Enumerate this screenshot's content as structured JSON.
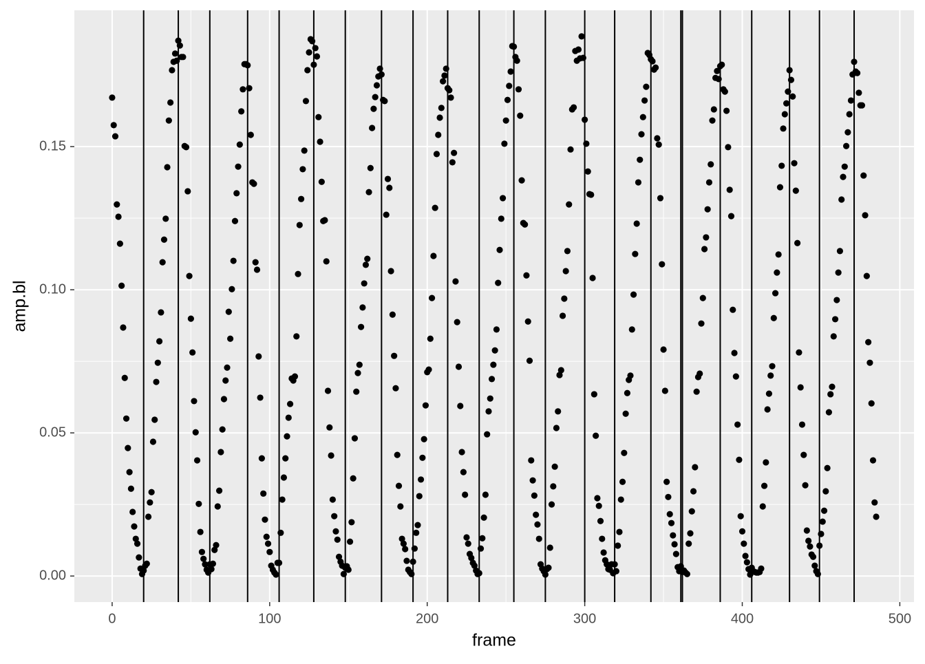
{
  "chart_data": {
    "type": "scatter",
    "x_label": "frame",
    "y_label": "amp.bl",
    "xlim": [
      -24,
      509
    ],
    "ylim": [
      -0.0091,
      0.1976
    ],
    "xticks": [
      0,
      100,
      200,
      300,
      400,
      500
    ],
    "yticks": [
      {
        "value": 0,
        "label": "0.00"
      },
      {
        "value": 0.05,
        "label": "0.05"
      },
      {
        "value": 0.1,
        "label": "0.10"
      },
      {
        "value": 0.15,
        "label": "0.15"
      }
    ],
    "grid": true,
    "color": "#000000",
    "vline_color": "#000000",
    "vlines": [
      20,
      42,
      62,
      86,
      106,
      128,
      148,
      171,
      191,
      213,
      233,
      255,
      275,
      300,
      319,
      342,
      361,
      362,
      386,
      406,
      430,
      449,
      471
    ],
    "x": [
      0,
      1,
      2,
      3,
      4,
      5,
      6,
      7,
      8,
      9,
      10,
      11,
      12,
      13,
      14,
      15,
      16,
      17,
      18,
      19,
      20,
      21,
      22,
      23,
      24,
      25,
      26,
      27,
      28,
      29,
      30,
      31,
      32,
      33,
      34,
      35,
      36,
      37,
      38,
      39,
      40,
      41,
      42,
      43,
      44,
      45,
      46,
      47,
      48,
      49,
      50,
      51,
      52,
      53,
      54,
      55,
      56,
      57,
      58,
      59,
      60,
      61,
      62,
      63,
      64,
      65,
      66,
      67,
      68,
      69,
      70,
      71,
      72,
      73,
      74,
      75,
      76,
      77,
      78,
      79,
      80,
      81,
      82,
      83,
      84,
      85,
      86,
      87,
      88,
      89,
      90,
      91,
      92,
      93,
      94,
      95,
      96,
      97,
      98,
      99,
      100,
      101,
      102,
      103,
      104,
      105,
      106,
      107,
      108,
      109,
      110,
      111,
      112,
      113,
      114,
      115,
      116,
      117,
      118,
      119,
      120,
      121,
      122,
      123,
      124,
      125,
      126,
      127,
      128,
      129,
      130,
      131,
      132,
      133,
      134,
      135,
      136,
      137,
      138,
      139,
      140,
      141,
      142,
      143,
      144,
      145,
      146,
      147,
      148,
      149,
      150,
      151,
      152,
      153,
      154,
      155,
      156,
      157,
      158,
      159,
      160,
      161,
      162,
      163,
      164,
      165,
      166,
      167,
      168,
      169,
      170,
      171,
      172,
      173,
      174,
      175,
      176,
      177,
      178,
      179,
      180,
      181,
      182,
      183,
      184,
      185,
      186,
      187,
      188,
      189,
      190,
      191,
      192,
      193,
      194,
      195,
      196,
      197,
      198,
      199,
      200,
      201,
      202,
      203,
      204,
      205,
      206,
      207,
      208,
      209,
      210,
      211,
      212,
      213,
      214,
      215,
      216,
      217,
      218,
      219,
      220,
      221,
      222,
      223,
      224,
      225,
      226,
      227,
      228,
      229,
      230,
      231,
      232,
      233,
      234,
      235,
      236,
      237,
      238,
      239,
      240,
      241,
      242,
      243,
      244,
      245,
      246,
      247,
      248,
      249,
      250,
      251,
      252,
      253,
      254,
      255,
      256,
      257,
      258,
      259,
      260,
      261,
      262,
      263,
      264,
      265,
      266,
      267,
      268,
      269,
      270,
      271,
      272,
      273,
      274,
      275,
      276,
      277,
      278,
      279,
      280,
      281,
      282,
      283,
      284,
      285,
      286,
      287,
      288,
      289,
      290,
      291,
      292,
      293,
      294,
      295,
      296,
      297,
      298,
      299,
      300,
      301,
      302,
      303,
      304,
      305,
      306,
      307,
      308,
      309,
      310,
      311,
      312,
      313,
      314,
      315,
      316,
      317,
      318,
      319,
      320,
      321,
      322,
      323,
      324,
      325,
      326,
      327,
      328,
      329,
      330,
      331,
      332,
      333,
      334,
      335,
      336,
      337,
      338,
      339,
      340,
      341,
      342,
      343,
      344,
      345,
      346,
      347,
      348,
      349,
      350,
      351,
      352,
      353,
      354,
      355,
      356,
      357,
      358,
      359,
      360,
      361,
      362,
      363,
      364,
      365,
      366,
      367,
      368,
      369,
      370,
      371,
      372,
      373,
      374,
      375,
      376,
      377,
      378,
      379,
      380,
      381,
      382,
      383,
      384,
      385,
      386,
      387,
      388,
      389,
      390,
      391,
      392,
      393,
      394,
      395,
      396,
      397,
      398,
      399,
      400,
      401,
      402,
      403,
      404,
      405,
      406,
      407,
      408,
      409,
      410,
      411,
      412,
      413,
      414,
      415,
      416,
      417,
      418,
      419,
      420,
      421,
      422,
      423,
      424,
      425,
      426,
      427,
      428,
      429,
      430,
      431,
      432,
      433,
      434,
      435,
      436,
      437,
      438,
      439,
      440,
      441,
      442,
      443,
      444,
      445,
      446,
      447,
      448,
      449,
      450,
      451,
      452,
      453,
      454,
      455,
      456,
      457,
      458,
      459,
      460,
      461,
      462,
      463,
      464,
      465,
      466,
      467,
      468,
      469,
      470,
      471,
      472,
      473,
      474,
      475,
      476,
      477,
      478,
      479,
      480,
      481,
      482,
      483,
      484,
      485
    ],
    "values": [
      0.1671,
      0.1575,
      0.1536,
      0.1298,
      0.1255,
      0.1161,
      0.1014,
      0.0868,
      0.0692,
      0.055,
      0.0447,
      0.0363,
      0.0305,
      0.0224,
      0.0173,
      0.013,
      0.0113,
      0.0065,
      0.0026,
      0.0007,
      0.0019,
      0.0036,
      0.0043,
      0.0207,
      0.0257,
      0.0293,
      0.0469,
      0.0546,
      0.0678,
      0.0745,
      0.082,
      0.0921,
      0.1096,
      0.1175,
      0.1248,
      0.1428,
      0.1591,
      0.1654,
      0.1767,
      0.1796,
      0.1825,
      0.18,
      0.187,
      0.1853,
      0.1813,
      0.1813,
      0.1502,
      0.1498,
      0.1344,
      0.1048,
      0.0899,
      0.0781,
      0.0611,
      0.0502,
      0.0404,
      0.0252,
      0.0154,
      0.0084,
      0.006,
      0.0041,
      0.0022,
      0.0012,
      0.0041,
      0.0024,
      0.0043,
      0.0091,
      0.0108,
      0.0243,
      0.0298,
      0.0433,
      0.0512,
      0.0618,
      0.0683,
      0.0728,
      0.0923,
      0.0829,
      0.1002,
      0.1101,
      0.124,
      0.1337,
      0.143,
      0.1507,
      0.1623,
      0.17,
      0.1788,
      0.1788,
      0.1784,
      0.1704,
      0.1541,
      0.1375,
      0.137,
      0.1096,
      0.107,
      0.0767,
      0.0623,
      0.0411,
      0.0288,
      0.0197,
      0.0137,
      0.0113,
      0.0084,
      0.0036,
      0.0022,
      0.0012,
      0.0005,
      0.0046,
      0.0046,
      0.0151,
      0.0267,
      0.0344,
      0.0411,
      0.0488,
      0.0553,
      0.0601,
      0.069,
      0.0683,
      0.0697,
      0.0837,
      0.1055,
      0.1226,
      0.1317,
      0.1421,
      0.1486,
      0.1659,
      0.1767,
      0.1829,
      0.1875,
      0.1868,
      0.1786,
      0.1844,
      0.1815,
      0.1603,
      0.1517,
      0.1377,
      0.124,
      0.1243,
      0.1099,
      0.0647,
      0.0519,
      0.0421,
      0.0267,
      0.0209,
      0.0156,
      0.0127,
      0.0067,
      0.005,
      0.0036,
      0.0007,
      0.0029,
      0.0034,
      0.0022,
      0.012,
      0.0188,
      0.0341,
      0.0481,
      0.0644,
      0.0709,
      0.0738,
      0.087,
      0.0938,
      0.1022,
      0.1087,
      0.1108,
      0.1341,
      0.1425,
      0.1565,
      0.1632,
      0.1673,
      0.1714,
      0.1745,
      0.1772,
      0.1752,
      0.1663,
      0.1659,
      0.1262,
      0.1387,
      0.1356,
      0.1065,
      0.0913,
      0.0769,
      0.0656,
      0.0423,
      0.0315,
      0.0243,
      0.013,
      0.0113,
      0.0094,
      0.0053,
      0.0022,
      0.0014,
      0.0007,
      0.005,
      0.0096,
      0.0151,
      0.0178,
      0.0279,
      0.0337,
      0.0413,
      0.0478,
      0.0596,
      0.0712,
      0.0721,
      0.0829,
      0.0971,
      0.1118,
      0.1286,
      0.1474,
      0.1541,
      0.1601,
      0.1635,
      0.1728,
      0.1748,
      0.1772,
      0.1704,
      0.1697,
      0.1671,
      0.1445,
      0.1478,
      0.1029,
      0.0887,
      0.0731,
      0.0594,
      0.0433,
      0.0363,
      0.0284,
      0.0135,
      0.0113,
      0.0077,
      0.0063,
      0.0046,
      0.0036,
      0.0019,
      0.0007,
      0.001,
      0.0096,
      0.0132,
      0.0204,
      0.0284,
      0.0495,
      0.0575,
      0.062,
      0.0688,
      0.0738,
      0.0788,
      0.0861,
      0.1024,
      0.1139,
      0.1248,
      0.132,
      0.151,
      0.1591,
      0.1663,
      0.1712,
      0.1762,
      0.1851,
      0.1849,
      0.1813,
      0.18,
      0.17,
      0.1608,
      0.1382,
      0.1233,
      0.1228,
      0.105,
      0.0889,
      0.0752,
      0.0404,
      0.0334,
      0.0281,
      0.0214,
      0.018,
      0.013,
      0.0041,
      0.0026,
      0.0017,
      0.0005,
      0.0024,
      0.0029,
      0.0099,
      0.025,
      0.0313,
      0.0382,
      0.0517,
      0.0575,
      0.0702,
      0.0719,
      0.0909,
      0.0969,
      0.1065,
      0.1135,
      0.1298,
      0.149,
      0.163,
      0.1637,
      0.1834,
      0.18,
      0.1839,
      0.1808,
      0.1885,
      0.181,
      0.1594,
      0.151,
      0.1413,
      0.1334,
      0.1332,
      0.1041,
      0.0635,
      0.049,
      0.0272,
      0.0245,
      0.0192,
      0.013,
      0.0082,
      0.0055,
      0.0041,
      0.0024,
      0.0022,
      0.0041,
      0.001,
      0.0041,
      0.0017,
      0.0106,
      0.0154,
      0.0267,
      0.0329,
      0.043,
      0.0567,
      0.0639,
      0.0685,
      0.07,
      0.0861,
      0.0983,
      0.1125,
      0.1231,
      0.1375,
      0.1454,
      0.1543,
      0.1603,
      0.1661,
      0.1709,
      0.1827,
      0.182,
      0.1805,
      0.1798,
      0.1769,
      0.1776,
      0.1529,
      0.1507,
      0.132,
      0.1089,
      0.0791,
      0.0647,
      0.0329,
      0.0276,
      0.0216,
      0.0185,
      0.0142,
      0.0111,
      0.0077,
      0.0031,
      0.0017,
      0.0034,
      0.0014,
      0.0019,
      0.0012,
      0.0007,
      0.0113,
      0.0149,
      0.0226,
      0.0296,
      0.038,
      0.0644,
      0.0695,
      0.0707,
      0.0882,
      0.0971,
      0.1142,
      0.1183,
      0.1281,
      0.1375,
      0.1438,
      0.1591,
      0.163,
      0.174,
      0.1764,
      0.1736,
      0.1781,
      0.1786,
      0.17,
      0.1692,
      0.1625,
      0.1498,
      0.1349,
      0.1257,
      0.093,
      0.0779,
      0.0697,
      0.0529,
      0.0406,
      0.0209,
      0.0156,
      0.0113,
      0.007,
      0.0048,
      0.0024,
      0.0005,
      0.0029,
      0.0017,
      0.0014,
      0.0012,
      0.0012,
      0.0014,
      0.0026,
      0.0243,
      0.0315,
      0.0397,
      0.0582,
      0.0637,
      0.07,
      0.0733,
      0.0901,
      0.0988,
      0.106,
      0.1123,
      0.1358,
      0.1433,
      0.1563,
      0.1613,
      0.1651,
      0.1692,
      0.1767,
      0.1733,
      0.1675,
      0.1442,
      0.1346,
      0.1163,
      0.0781,
      0.0659,
      0.0529,
      0.0423,
      0.0317,
      0.0159,
      0.0123,
      0.0103,
      0.0075,
      0.0067,
      0.0036,
      0.0017,
      0.0007,
      0.0106,
      0.0147,
      0.019,
      0.0228,
      0.0296,
      0.0377,
      0.0572,
      0.0635,
      0.0661,
      0.0837,
      0.0897,
      0.0964,
      0.106,
      0.1135,
      0.1315,
      0.1394,
      0.143,
      0.1502,
      0.155,
      0.1613,
      0.1661,
      0.1752,
      0.1796,
      0.1762,
      0.1757,
      0.1688,
      0.1644,
      0.1644,
      0.1399,
      0.126,
      0.1048,
      0.0817,
      0.0745,
      0.0603,
      0.0404,
      0.0257,
      0.0207
    ]
  }
}
